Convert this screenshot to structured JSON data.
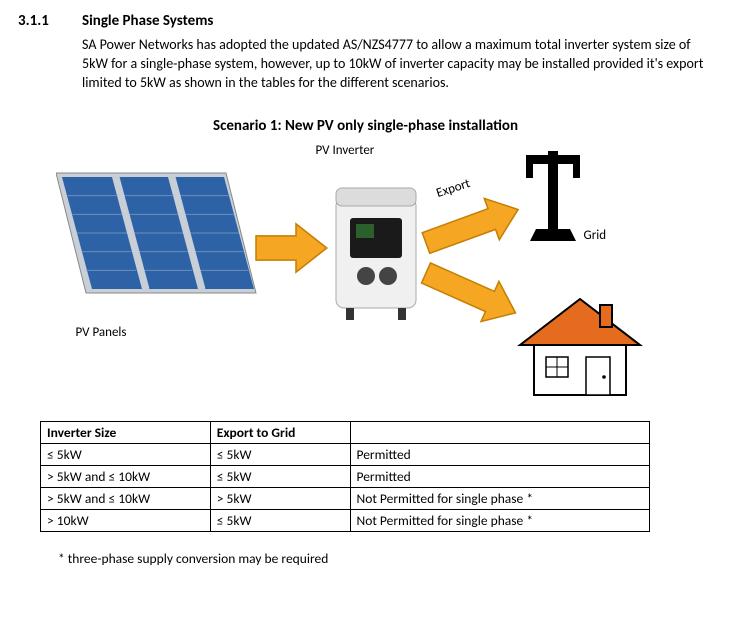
{
  "heading": {
    "number": "3.1.1",
    "title": "Single Phase Systems"
  },
  "paragraph": "SA Power Networks has adopted the updated AS/NZS4777 to allow a maximum total inverter system size of 5kW for a single-phase system, however, up to 10kW of inverter capacity may be installed provided it's export limited to 5kW as shown in the tables for the different scenarios.",
  "scenario_title": "Scenario 1: New PV only single-phase installation",
  "diagram": {
    "labels": {
      "pv_inverter": "PV Inverter",
      "pv_panels": "PV Panels",
      "export": "Export",
      "grid": "Grid"
    },
    "colors": {
      "panel_frame": "#c9cfd6",
      "panel_cell": "#2e62a7",
      "panel_grid": "#6d8fb9",
      "arrow_fill": "#f5a623",
      "arrow_stroke": "#c47e00",
      "inverter_body": "#f0f0f0",
      "inverter_screen": "#1a1a1a",
      "inverter_btn": "#444",
      "tower_color": "#000000",
      "house_wall": "#ffffff",
      "house_outline": "#000000",
      "house_roof": "#e56b1f"
    }
  },
  "table": {
    "columns": [
      "Inverter Size",
      "Export to Grid",
      ""
    ],
    "rows": [
      [
        "≤ 5kW",
        "≤ 5kW",
        "Permitted"
      ],
      [
        "> 5kW and ≤ 10kW",
        "≤ 5kW",
        "Permitted"
      ],
      [
        "> 5kW and ≤ 10kW",
        "> 5kW",
        "Not Permitted for single phase *"
      ],
      [
        "> 10kW",
        "≤ 5kW",
        "Not Permitted for single phase *"
      ]
    ],
    "col_widths": [
      "170px",
      "140px",
      "300px"
    ]
  },
  "footnote": "* three-phase supply conversion may be required"
}
